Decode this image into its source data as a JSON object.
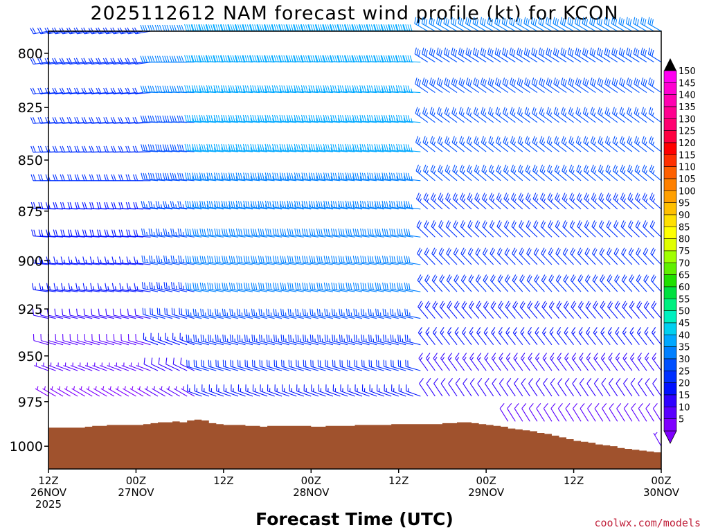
{
  "chart_data": {
    "type": "wind barb profile",
    "title": "2025112612 NAM forecast wind profile (kt) for KCON",
    "xlabel": "Forecast Time (UTC)",
    "ylabel": "",
    "y_axis": {
      "range": [
        1013,
        790
      ],
      "inverted": true,
      "ticks": [
        800,
        825,
        850,
        875,
        900,
        925,
        950,
        975,
        1000
      ]
    },
    "x_axis": {
      "range_hours": [
        0,
        84
      ],
      "ticks": [
        {
          "hour": 0,
          "lines": [
            "12Z",
            "26NOV",
            "2025"
          ]
        },
        {
          "hour": 12,
          "lines": [
            "00Z",
            "27NOV"
          ]
        },
        {
          "hour": 24,
          "lines": [
            "12Z",
            ""
          ]
        },
        {
          "hour": 36,
          "lines": [
            "00Z",
            "28NOV"
          ]
        },
        {
          "hour": 48,
          "lines": [
            "12Z",
            ""
          ]
        },
        {
          "hour": 60,
          "lines": [
            "00Z",
            "29NOV"
          ]
        },
        {
          "hour": 72,
          "lines": [
            "12Z",
            ""
          ]
        },
        {
          "hour": 84,
          "lines": [
            "00Z",
            "30NOV"
          ]
        }
      ]
    },
    "colorbar": {
      "unit": "kt",
      "levels": [
        5,
        10,
        15,
        20,
        25,
        30,
        35,
        40,
        45,
        50,
        55,
        60,
        65,
        70,
        75,
        80,
        85,
        90,
        95,
        100,
        105,
        110,
        115,
        120,
        125,
        130,
        135,
        140,
        145,
        150
      ],
      "colors": [
        "#7f00ff",
        "#5a00ff",
        "#2f00ff",
        "#0010ff",
        "#0030ff",
        "#0050ff",
        "#0080ff",
        "#00a8ff",
        "#00d0f0",
        "#00f0c0",
        "#00f080",
        "#00e040",
        "#20e000",
        "#60f000",
        "#a0ff00",
        "#e0ff00",
        "#ffff00",
        "#ffe000",
        "#ffc000",
        "#ffa000",
        "#ff8000",
        "#ff6000",
        "#ff3000",
        "#ff0000",
        "#ff0040",
        "#ff0070",
        "#ff0090",
        "#ff00b0",
        "#ff00d0",
        "#ff00f0"
      ],
      "top_arrow_color": "#000000",
      "bottom_arrow_color": "#7f00ff"
    },
    "terrain": {
      "color": "#a0522d",
      "hours": [
        0,
        1,
        2,
        3,
        4,
        5,
        6,
        7,
        8,
        9,
        10,
        11,
        12,
        13,
        14,
        15,
        16,
        17,
        18,
        19,
        20,
        21,
        22,
        23,
        24,
        25,
        26,
        27,
        28,
        29,
        30,
        31,
        32,
        33,
        34,
        35,
        36,
        37,
        38,
        39,
        40,
        41,
        42,
        43,
        44,
        45,
        46,
        47,
        48,
        49,
        50,
        51,
        52,
        53,
        54,
        55,
        56,
        57,
        58,
        59,
        60,
        61,
        62,
        63,
        64,
        65,
        66,
        67,
        68,
        69,
        70,
        71,
        72,
        73,
        74,
        75,
        76,
        77,
        78,
        79,
        80,
        81,
        82,
        83,
        84
      ],
      "pressure": [
        989.5,
        989.5,
        989.5,
        989.5,
        989.5,
        989,
        988.5,
        988.5,
        988,
        988,
        988,
        988,
        988,
        987.5,
        987,
        986.5,
        986.5,
        986,
        986.5,
        985.5,
        985,
        985.5,
        987,
        987.5,
        988,
        988,
        988,
        988.5,
        988.5,
        989,
        988.5,
        988.5,
        988.5,
        988.5,
        988.5,
        988.5,
        989,
        989,
        988.5,
        988.5,
        988.5,
        988.5,
        988,
        988,
        988,
        988,
        988,
        987.5,
        987.5,
        987.5,
        987.5,
        987.5,
        987.5,
        987.5,
        987,
        987,
        986.5,
        986.5,
        987,
        987.5,
        988,
        988.5,
        989,
        990,
        990.5,
        991,
        991.5,
        992.5,
        993,
        994,
        995,
        996,
        997,
        997.5,
        998,
        999,
        999.5,
        1000,
        1001,
        1001.5,
        1002,
        1002.5,
        1003,
        1003.5,
        1004
      ]
    },
    "barb_grid": {
      "note": "barbs every forecast hour at 14 hPa-spaced levels; speeds (kt) estimated by color/feathers",
      "levels": [
        790,
        804,
        818,
        832,
        846,
        860,
        874,
        888,
        902,
        916,
        930,
        944,
        958,
        972,
        986,
        1000
      ],
      "period_segments": [
        {
          "hours": [
            0,
            14
          ],
          "speed_kt": [
            22,
            22,
            21,
            21,
            20,
            20,
            19,
            18,
            17,
            15,
            12,
            8,
            6,
            4,
            3,
            3
          ],
          "dir_deg": [
            260,
            262,
            264,
            266,
            268,
            270,
            272,
            274,
            276,
            278,
            282,
            286,
            290,
            300,
            310,
            320
          ]
        },
        {
          "hours": [
            15,
            20
          ],
          "speed_kt": [
            30,
            30,
            30,
            29,
            29,
            28,
            27,
            26,
            25,
            23,
            20,
            15,
            10,
            6,
            4,
            4
          ],
          "dir_deg": [
            270,
            270,
            272,
            272,
            274,
            275,
            276,
            278,
            280,
            282,
            285,
            290,
            295,
            300,
            305,
            310
          ]
        },
        {
          "hours": [
            21,
            51
          ],
          "speed_kt": [
            38,
            38,
            37,
            36,
            35,
            34,
            33,
            32,
            31,
            30,
            27,
            24,
            20,
            15,
            10,
            8
          ],
          "dir_deg": [
            272,
            272,
            273,
            274,
            275,
            276,
            277,
            278,
            279,
            280,
            282,
            284,
            286,
            290,
            296,
            300
          ]
        },
        {
          "hours": [
            52,
            84
          ],
          "speed_kt": [
            30,
            29,
            28,
            27,
            26,
            25,
            23,
            22,
            21,
            20,
            18,
            16,
            14,
            12,
            9,
            7
          ],
          "dir_deg": [
            300,
            302,
            304,
            306,
            308,
            310,
            312,
            314,
            316,
            318,
            320,
            322,
            324,
            326,
            328,
            330
          ]
        }
      ]
    }
  },
  "credit": {
    "text": "coolwx.com/models",
    "color": "#c0203a"
  }
}
